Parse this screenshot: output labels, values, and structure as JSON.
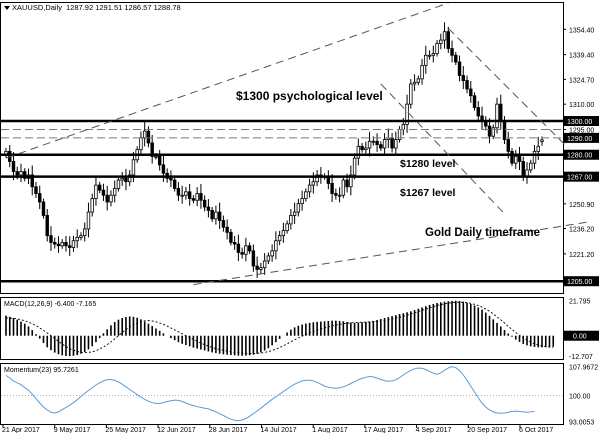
{
  "header": {
    "symbol": "XAUUSD,Daily",
    "ohlc": "1287.92 1291.51 1286.57 1288.78"
  },
  "annotations": {
    "level_1300": "$1300 psychological level",
    "level_1280": "$1280 level",
    "level_1267": "$1267 level",
    "timeframe": "Gold Daily timeframe"
  },
  "macd_panel": {
    "title": "MACD(12,26,9) -6.400 -7.165",
    "ticks": [
      "21.795",
      "0.00",
      "-12.707"
    ]
  },
  "momentum_panel": {
    "title": "Momentum(23) 95.7261",
    "ticks": [
      "107.9672",
      "100.00",
      "93.0053"
    ]
  },
  "price_ticks": [
    "1354.40",
    "1339.40",
    "1324.70",
    "1310.00",
    "1300.00",
    "1295.00",
    "1290.00",
    "1280.00",
    "1267.00",
    "1250.90",
    "1236.20",
    "1221.20",
    "1205.00"
  ],
  "price_tags": [
    "1300.00",
    "1290.00",
    "1280.00",
    "1267.00",
    "1205.00"
  ],
  "date_labels": [
    "21 Apr 2017",
    "9 May 2017",
    "25 May 2017",
    "12 Jun 2017",
    "28 Jun 2017",
    "14 Jul 2017",
    "1 Aug 2017",
    "17 Aug 2017",
    "4 Sep 2017",
    "20 Sep 2017",
    "6 Oct 2017"
  ],
  "colors": {
    "candle_up": "#ffffff",
    "candle_down": "#000000",
    "momentum_line": "#5b9bd5",
    "level_line": "#000000",
    "trend_line": "#555555"
  },
  "chart_data": {
    "type": "candlestick",
    "instrument": "XAUUSD",
    "timeframe": "Daily",
    "last_bar": {
      "open": 1287.92,
      "high": 1291.51,
      "low": 1286.57,
      "close": 1288.78
    },
    "closes": [
      1282,
      1276,
      1270,
      1268,
      1270,
      1266,
      1268,
      1261,
      1257,
      1252,
      1244,
      1232,
      1228,
      1227,
      1226,
      1228,
      1226,
      1225,
      1229,
      1231,
      1232,
      1236,
      1246,
      1254,
      1262,
      1259,
      1256,
      1252,
      1256,
      1260,
      1265,
      1266,
      1264,
      1268,
      1277,
      1283,
      1290,
      1294,
      1287,
      1279,
      1279,
      1274,
      1269,
      1266,
      1265,
      1260,
      1256,
      1256,
      1258,
      1254,
      1253,
      1257,
      1253,
      1249,
      1247,
      1242,
      1246,
      1241,
      1237,
      1234,
      1228,
      1227,
      1222,
      1221,
      1226,
      1223,
      1214,
      1212,
      1213,
      1217,
      1220,
      1223,
      1229,
      1232,
      1235,
      1239,
      1244,
      1246,
      1251,
      1254,
      1258,
      1262,
      1264,
      1268,
      1267,
      1267,
      1263,
      1257,
      1256,
      1256,
      1265,
      1261,
      1268,
      1278,
      1285,
      1283,
      1284,
      1288,
      1288,
      1286,
      1284,
      1289,
      1290,
      1284,
      1289,
      1295,
      1298,
      1310,
      1322,
      1323,
      1325,
      1333,
      1339,
      1339,
      1340,
      1346,
      1348,
      1353,
      1343,
      1339,
      1335,
      1327,
      1324,
      1319,
      1315,
      1308,
      1303,
      1300,
      1297,
      1291,
      1296,
      1310,
      1300,
      1289,
      1282,
      1275,
      1279,
      1276,
      1267,
      1271,
      1275,
      1282,
      1285,
      1288
    ],
    "levels": [
      {
        "label": "$1300 psychological level",
        "value": 1300.0
      },
      {
        "label": "$1280 level",
        "value": 1280.0
      },
      {
        "label": "$1267 level",
        "value": 1267.0
      },
      {
        "label": "",
        "value": 1205.0
      }
    ],
    "dashed_levels": [
      1295.0,
      1290.0
    ],
    "trendlines": [
      {
        "from": [
          0,
          1278
        ],
        "to": [
          118,
          1370
        ],
        "style": "dashed"
      },
      {
        "from": [
          50,
          1203
        ],
        "to": [
          155,
          1240
        ],
        "style": "dashed"
      },
      {
        "from": [
          118,
          1355
        ],
        "to": [
          150,
          1284
        ],
        "style": "dashed"
      },
      {
        "from": [
          100,
          1322
        ],
        "to": [
          133,
          1245
        ],
        "style": "dashed"
      }
    ],
    "y_range": [
      1198,
      1370
    ],
    "macd": {
      "last_values": [
        -6.4,
        -7.165
      ],
      "range": [
        -14.5,
        23.5
      ],
      "histogram": [
        12.5,
        11.8,
        11.0,
        10.0,
        8.8,
        7.5,
        5.8,
        3.5,
        1.0,
        -1.8,
        -4.5,
        -7.2,
        -9.0,
        -10.5,
        -11.5,
        -12.2,
        -12.6,
        -12.7,
        -12.5,
        -12.0,
        -11.2,
        -10.2,
        -8.5,
        -6.5,
        -4.0,
        -1.5,
        1.5,
        4.0,
        6.5,
        8.5,
        10.0,
        11.0,
        11.6,
        12.0,
        11.8,
        11.2,
        10.2,
        8.8,
        7.5,
        6.0,
        4.5,
        3.0,
        1.5,
        0.0,
        -1.5,
        -2.8,
        -4.0,
        -5.0,
        -5.8,
        -6.6,
        -7.4,
        -8.0,
        -8.6,
        -9.2,
        -9.8,
        -10.4,
        -10.8,
        -11.2,
        -11.6,
        -11.8,
        -12.0,
        -12.2,
        -12.4,
        -12.5,
        -12.4,
        -12.2,
        -11.8,
        -11.2,
        -10.4,
        -9.2,
        -7.8,
        -6.0,
        -4.0,
        -2.0,
        0.0,
        2.0,
        3.8,
        5.2,
        6.2,
        7.0,
        7.6,
        8.0,
        8.4,
        8.6,
        8.8,
        9.0,
        9.2,
        9.4,
        9.4,
        9.2,
        9.0,
        8.6,
        8.2,
        8.0,
        8.2,
        8.4,
        8.6,
        8.8,
        9.2,
        9.8,
        10.4,
        11.0,
        11.6,
        12.2,
        12.8,
        13.5,
        14.0,
        14.6,
        15.2,
        16.0,
        16.8,
        17.6,
        18.4,
        19.2,
        19.8,
        20.4,
        20.8,
        21.2,
        21.5,
        21.7,
        21.8,
        21.6,
        21.2,
        20.6,
        19.8,
        18.8,
        17.6,
        16.2,
        14.4,
        12.4,
        10.2,
        8.0,
        5.8,
        3.6,
        1.4,
        -0.6,
        -2.4,
        -3.9,
        -5.1,
        -6.0,
        -6.6,
        -7.0,
        -7.2,
        -7.3,
        -7.2,
        -7.0,
        -6.8
      ],
      "signal": [
        11.0,
        11.0,
        10.8,
        10.5,
        10.0,
        9.3,
        8.5,
        7.5,
        6.3,
        4.9,
        3.3,
        1.7,
        0.0,
        -1.8,
        -3.5,
        -5.2,
        -6.7,
        -8.0,
        -9.0,
        -9.8,
        -10.3,
        -10.5,
        -10.4,
        -10.0,
        -9.3,
        -8.3,
        -7.0,
        -5.5,
        -3.8,
        -2.0,
        0.0,
        2.0,
        3.8,
        5.4,
        6.8,
        8.0,
        8.8,
        9.3,
        9.4,
        9.2,
        8.7,
        8.0,
        7.1,
        6.0,
        4.8,
        3.6,
        2.4,
        1.2,
        0.0,
        -1.2,
        -2.4,
        -3.5,
        -4.6,
        -5.6,
        -6.5,
        -7.3,
        -8.0,
        -8.6,
        -9.1,
        -9.6,
        -10.0,
        -10.3,
        -10.6,
        -10.8,
        -11.0,
        -11.1,
        -11.1,
        -11.0,
        -10.8,
        -10.4,
        -9.9,
        -9.2,
        -8.4,
        -7.4,
        -6.3,
        -5.1,
        -3.8,
        -2.6,
        -1.4,
        -0.3,
        0.8,
        1.8,
        2.7,
        3.5,
        4.2,
        4.9,
        5.5,
        6.1,
        6.6,
        7.1,
        7.5,
        7.8,
        8.0,
        8.2,
        8.3,
        8.4,
        8.5,
        8.6,
        8.7,
        8.9,
        9.2,
        9.5,
        9.9,
        10.4,
        10.9,
        11.5,
        12.1,
        12.8,
        13.5,
        14.2,
        15.0,
        15.8,
        16.6,
        17.4,
        18.1,
        18.8,
        19.4,
        19.9,
        20.3,
        20.6,
        20.8,
        20.9,
        20.8,
        20.6,
        20.2,
        19.6,
        18.8,
        17.8,
        16.6,
        15.2,
        13.6,
        11.8,
        9.9,
        7.9,
        5.9,
        3.9,
        2.0,
        0.2,
        -1.4,
        -2.8,
        -4.0,
        -5.0,
        -5.8,
        -6.4,
        -6.8,
        -7.1,
        -7.2
      ]
    },
    "momentum": {
      "last_value": 95.7261,
      "range": [
        92.3,
        108.6
      ],
      "reference": 100.0,
      "values": [
        105.5,
        104.8,
        104.0,
        103.5,
        103.0,
        102.2,
        101.5,
        100.4,
        99.2,
        98.0,
        96.9,
        96.1,
        95.5,
        95.3,
        95.6,
        96.2,
        96.8,
        97.4,
        98.1,
        98.9,
        99.8,
        100.6,
        101.4,
        102.2,
        102.9,
        103.5,
        104.0,
        104.3,
        104.4,
        104.2,
        103.7,
        103.1,
        102.4,
        101.7,
        101.0,
        100.3,
        99.6,
        99.0,
        98.5,
        98.1,
        97.9,
        97.9,
        98.1,
        98.4,
        98.6,
        98.8,
        98.7,
        98.4,
        98.0,
        97.6,
        97.3,
        97.0,
        96.8,
        96.6,
        96.4,
        96.0,
        95.6,
        95.1,
        94.6,
        94.1,
        93.6,
        93.3,
        93.2,
        93.4,
        93.8,
        94.4,
        95.1,
        95.8,
        96.6,
        97.4,
        98.2,
        99.0,
        99.7,
        100.4,
        101.1,
        101.8,
        102.5,
        103.1,
        103.6,
        104.0,
        104.2,
        104.2,
        104.0,
        103.6,
        103.1,
        102.6,
        102.3,
        102.1,
        102.0,
        102.1,
        102.4,
        102.8,
        103.3,
        103.8,
        104.3,
        104.7,
        105.0,
        105.2,
        105.1,
        104.8,
        104.4,
        104.1,
        103.9,
        104.0,
        104.3,
        104.9,
        105.6,
        106.3,
        106.9,
        107.3,
        107.5,
        107.4,
        107.1,
        106.6,
        106.1,
        105.8,
        106.2,
        106.9,
        107.5,
        107.9,
        107.6,
        106.8,
        105.6,
        104.2,
        102.6,
        101.0,
        99.4,
        98.0,
        96.9,
        96.1,
        95.6,
        95.3,
        95.2,
        95.3,
        95.5,
        95.7,
        95.8,
        95.7,
        95.6,
        95.5,
        95.6,
        95.7
      ]
    }
  }
}
